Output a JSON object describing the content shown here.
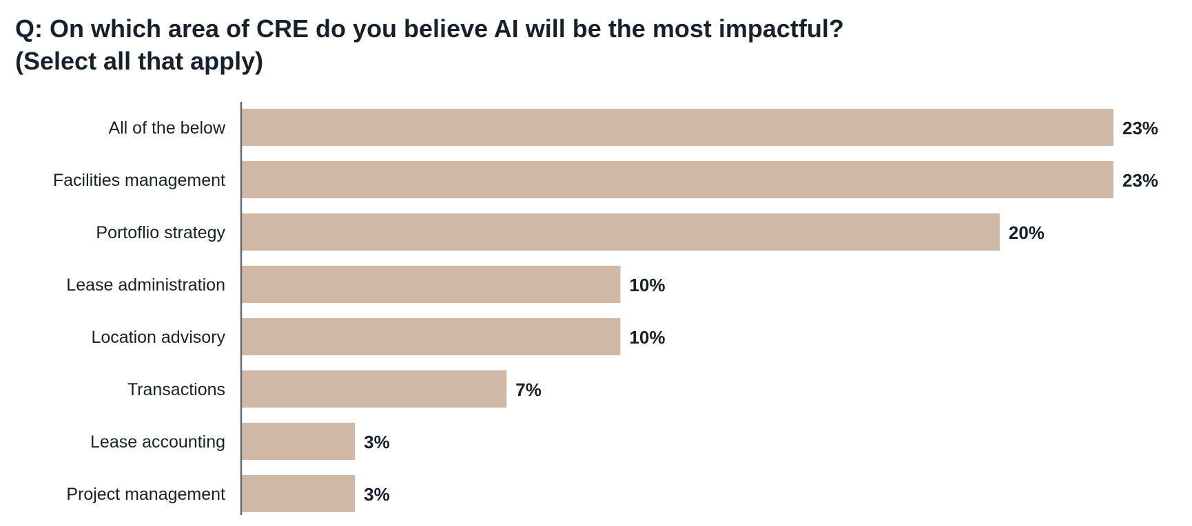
{
  "chart_data": {
    "type": "bar",
    "orientation": "horizontal",
    "title_lines": [
      "Q: On which area of CRE do you believe AI will be the most impactful?",
      "(Select all that apply)"
    ],
    "categories": [
      "All of the below",
      "Facilities management",
      "Portoflio strategy",
      "Lease administration",
      "Location advisory",
      "Transactions",
      "Lease accounting",
      "Project management"
    ],
    "values": [
      23,
      23,
      20,
      10,
      10,
      7,
      3,
      3
    ],
    "value_labels": [
      "23%",
      "23%",
      "20%",
      "10%",
      "10%",
      "7%",
      "3%",
      "3%"
    ],
    "unit": "%",
    "xlim": [
      0,
      23
    ],
    "grid": false,
    "legend": "none",
    "colors": {
      "bar": "#d0b8a6",
      "axis": "#5f6b73",
      "text": "#17212b"
    }
  }
}
